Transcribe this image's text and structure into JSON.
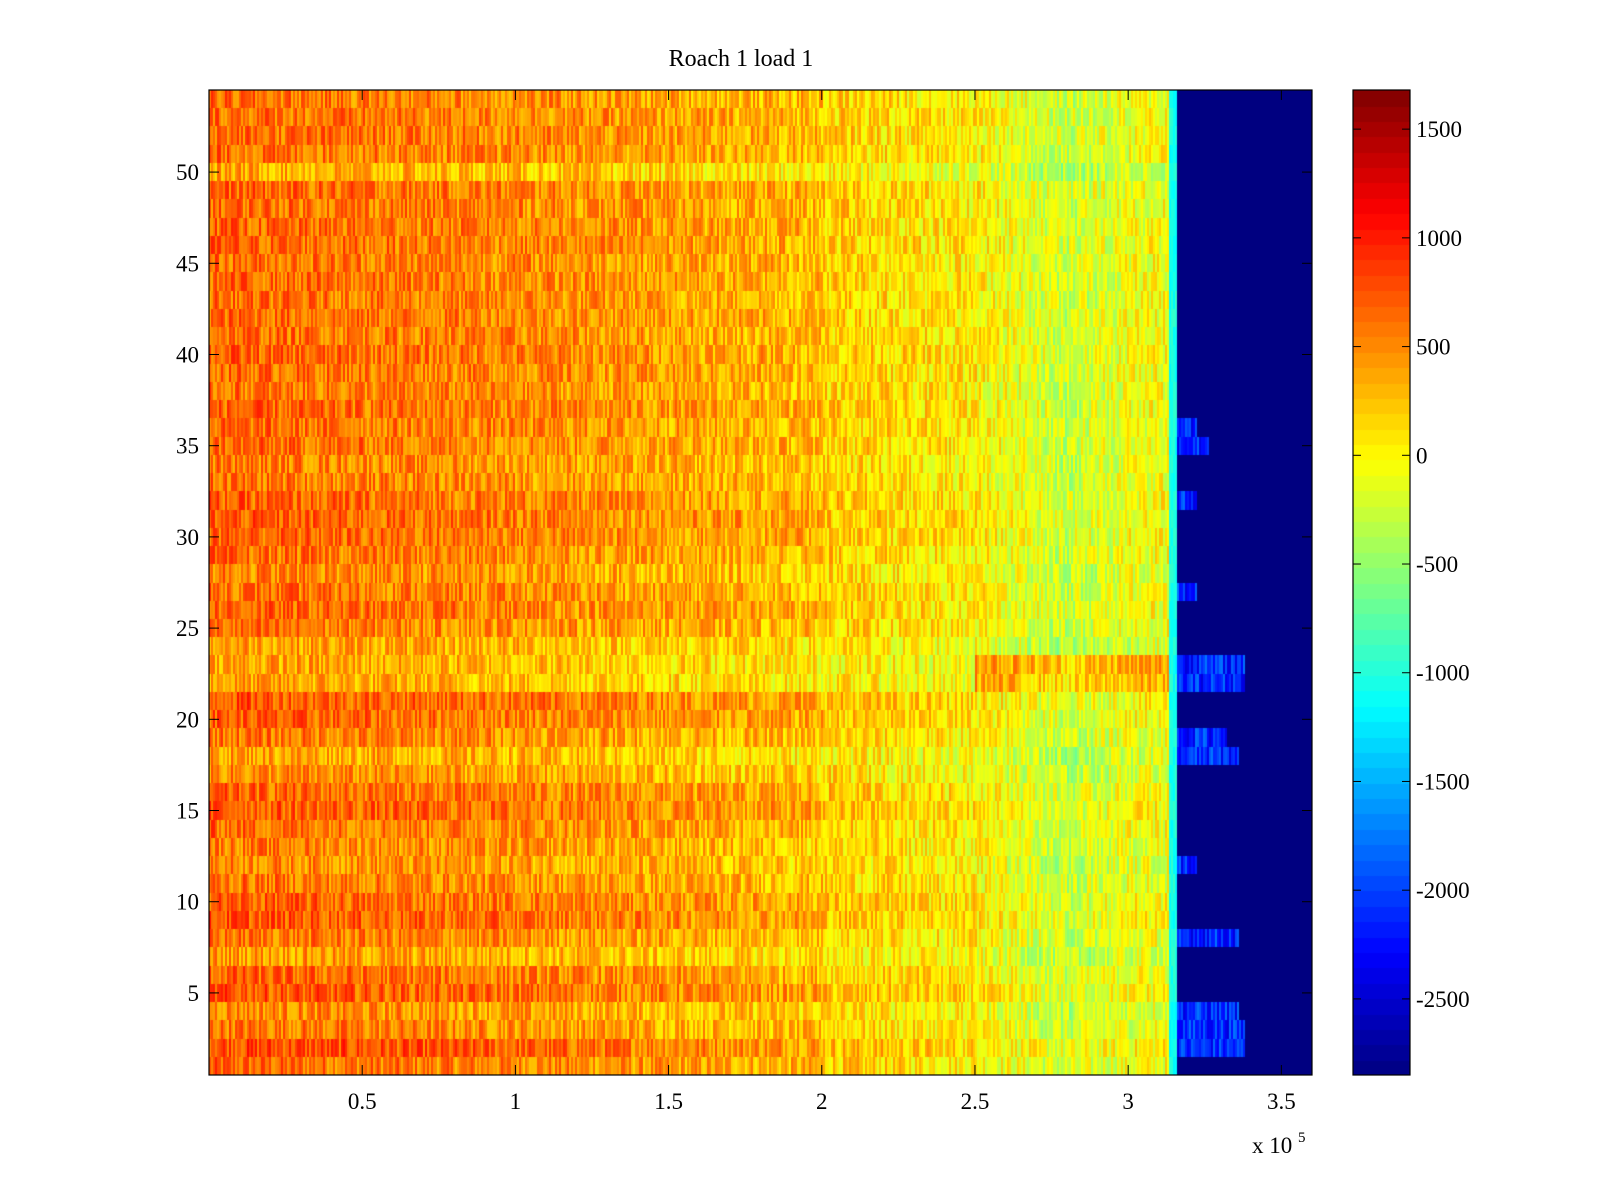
{
  "chart_data": {
    "type": "heatmap",
    "title": "Roach 1 load 1",
    "xlabel": "",
    "ylabel": "",
    "x_exponent_label": "x 10",
    "x_exponent_power": "5",
    "xlim": [
      0,
      360000
    ],
    "ylim": [
      0.5,
      54.5
    ],
    "x_ticks": [
      {
        "value": 50000,
        "label": "0.5"
      },
      {
        "value": 100000,
        "label": "1"
      },
      {
        "value": 150000,
        "label": "1.5"
      },
      {
        "value": 200000,
        "label": "2"
      },
      {
        "value": 250000,
        "label": "2.5"
      },
      {
        "value": 300000,
        "label": "3"
      },
      {
        "value": 350000,
        "label": "3.5"
      }
    ],
    "y_ticks": [
      {
        "value": 5,
        "label": "5"
      },
      {
        "value": 10,
        "label": "10"
      },
      {
        "value": 15,
        "label": "15"
      },
      {
        "value": 20,
        "label": "20"
      },
      {
        "value": 25,
        "label": "25"
      },
      {
        "value": 30,
        "label": "30"
      },
      {
        "value": 35,
        "label": "35"
      },
      {
        "value": 40,
        "label": "40"
      },
      {
        "value": 45,
        "label": "45"
      },
      {
        "value": 50,
        "label": "50"
      }
    ],
    "colorbar": {
      "colormap": "jet",
      "range": [
        -2850,
        1680
      ],
      "ticks": [
        {
          "value": 1500,
          "label": "1500"
        },
        {
          "value": 1000,
          "label": "1000"
        },
        {
          "value": 500,
          "label": "500"
        },
        {
          "value": 0,
          "label": "0"
        },
        {
          "value": -500,
          "label": "-500"
        },
        {
          "value": -1000,
          "label": "-1000"
        },
        {
          "value": -1500,
          "label": "-1500"
        },
        {
          "value": -2000,
          "label": "-2000"
        },
        {
          "value": -2500,
          "label": "-2500"
        }
      ]
    },
    "rows": 54,
    "x_breakpoints": [
      0,
      100000,
      200000,
      250000,
      280000,
      300000,
      316000
    ],
    "mean_profile": [
      460,
      320,
      90,
      -60,
      -380,
      -200,
      -150
    ],
    "data_end_x": 316000,
    "fill_value": -2850,
    "row_offsets": [
      200,
      350,
      150,
      80,
      300,
      220,
      0,
      150,
      300,
      250,
      150,
      80,
      120,
      200,
      280,
      220,
      60,
      -30,
      150,
      250,
      300,
      -50,
      -40,
      -10,
      150,
      220,
      180,
      100,
      180,
      240,
      260,
      230,
      150,
      120,
      200,
      180,
      220,
      160,
      200,
      230,
      190,
      210,
      180,
      200,
      190,
      220,
      210,
      200,
      220,
      -80,
      180,
      200,
      190,
      170
    ],
    "row_tail_offsets": [
      0,
      0,
      0,
      0,
      0,
      0,
      0,
      0,
      0,
      0,
      0,
      0,
      0,
      0,
      0,
      0,
      0,
      0,
      0,
      0,
      0,
      500,
      600,
      0,
      0,
      0,
      0,
      0,
      0,
      0,
      0,
      0,
      0,
      0,
      0,
      0,
      0,
      0,
      0,
      0,
      0,
      0,
      0,
      0,
      0,
      0,
      0,
      0,
      0,
      0,
      0,
      0,
      0,
      0
    ],
    "row_end_extensions": [
      {
        "row": 2,
        "x_end": 338000
      },
      {
        "row": 3,
        "x_end": 338000
      },
      {
        "row": 4,
        "x_end": 336000
      },
      {
        "row": 8,
        "x_end": 336000
      },
      {
        "row": 12,
        "x_end": 322000
      },
      {
        "row": 18,
        "x_end": 336000
      },
      {
        "row": 19,
        "x_end": 332000
      },
      {
        "row": 22,
        "x_end": 338000
      },
      {
        "row": 23,
        "x_end": 338000
      },
      {
        "row": 27,
        "x_end": 322000
      },
      {
        "row": 32,
        "x_end": 322000
      },
      {
        "row": 35,
        "x_end": 326000
      },
      {
        "row": 36,
        "x_end": 322000
      }
    ]
  }
}
